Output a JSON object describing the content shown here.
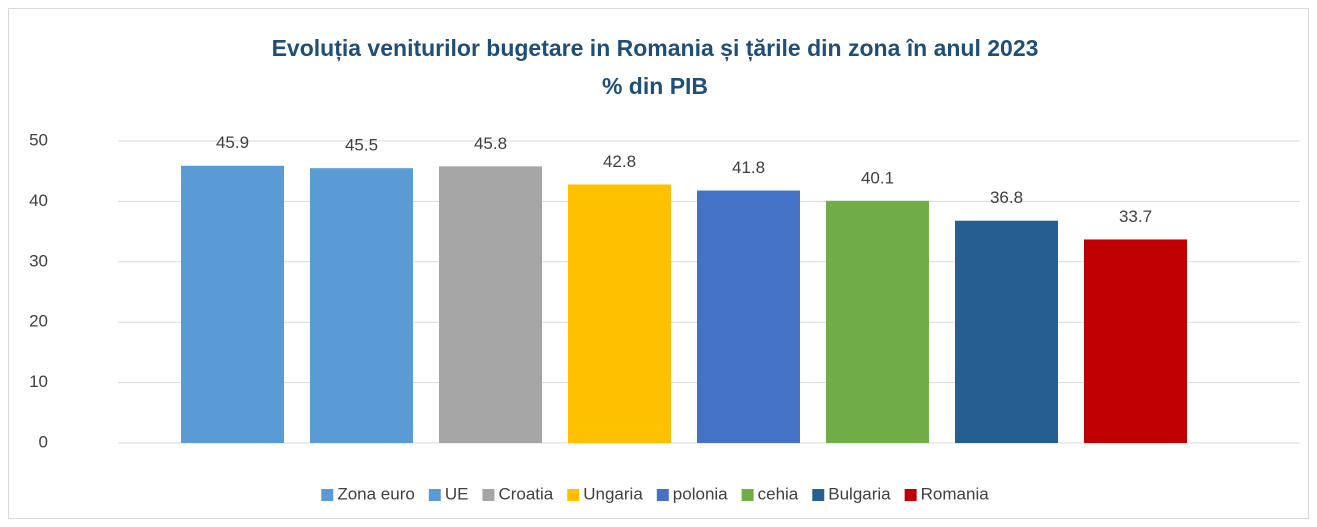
{
  "chart_data": {
    "type": "bar",
    "title": "Evoluția veniturilor  bugetare in Romania  și țările din zona în anul 2023",
    "subtitle": "% din PIB",
    "series": [
      {
        "name": "Zona euro",
        "color": "#5b9bd5",
        "values": [
          45.9
        ]
      },
      {
        "name": "UE",
        "color": "#5b9bd5",
        "values": [
          45.5
        ]
      },
      {
        "name": "Croatia",
        "color": "#a5a5a5",
        "values": [
          45.8
        ]
      },
      {
        "name": "Ungaria",
        "color": "#ffc000",
        "values": [
          42.8
        ]
      },
      {
        "name": "polonia",
        "color": "#4472c4",
        "values": [
          41.8
        ]
      },
      {
        "name": "cehia",
        "color": "#70ad47",
        "values": [
          40.1
        ]
      },
      {
        "name": "Bulgaria",
        "color": "#255e91",
        "values": [
          36.8
        ]
      },
      {
        "name": "Romania",
        "color": "#c00000",
        "values": [
          33.7
        ]
      }
    ],
    "ylim": [
      0,
      50
    ],
    "yticks": [
      0,
      10,
      20,
      30,
      40,
      50
    ],
    "grid": true,
    "legend": "bottom"
  }
}
